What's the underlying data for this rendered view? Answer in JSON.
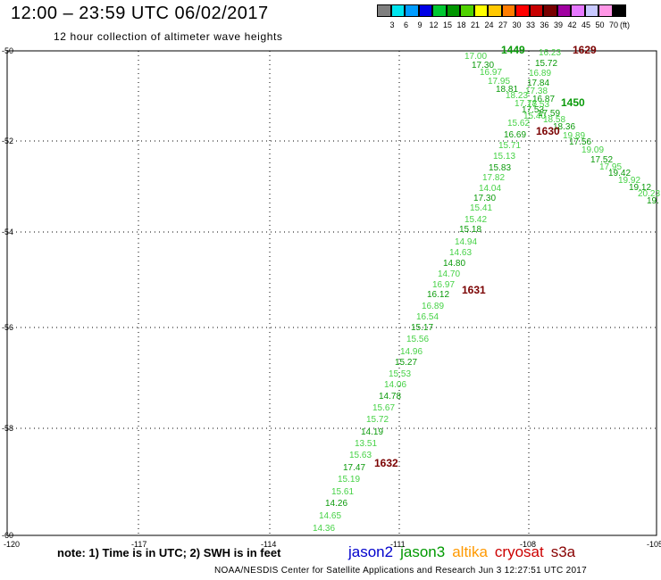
{
  "header": {
    "title": "12:00 – 23:59 UTC 06/02/2017",
    "subtitle": "12 hour collection of altimeter wave heights"
  },
  "color_scale": {
    "unit": "(ft)",
    "bins": [
      {
        "label": "3",
        "color": "#7f7f7f"
      },
      {
        "label": "6",
        "color": "#00e5ee"
      },
      {
        "label": "9",
        "color": "#009cff"
      },
      {
        "label": "12",
        "color": "#0000e6"
      },
      {
        "label": "15",
        "color": "#00c832"
      },
      {
        "label": "18",
        "color": "#009600"
      },
      {
        "label": "21",
        "color": "#50d200"
      },
      {
        "label": "24",
        "color": "#ffff00"
      },
      {
        "label": "27",
        "color": "#ffc800"
      },
      {
        "label": "30",
        "color": "#ff7d00"
      },
      {
        "label": "33",
        "color": "#ff0000"
      },
      {
        "label": "36",
        "color": "#c80000"
      },
      {
        "label": "39",
        "color": "#780000"
      },
      {
        "label": "42",
        "color": "#a000a0"
      },
      {
        "label": "45",
        "color": "#e678ff"
      },
      {
        "label": "50",
        "color": "#c8c8ff"
      },
      {
        "label": "70",
        "color": "#ff96e6"
      },
      {
        "label": "",
        "color": "#000000"
      }
    ]
  },
  "axes": {
    "lat_labels": [
      "-50",
      "-52",
      "-54",
      "-56",
      "-58",
      "-60"
    ],
    "lon_labels": [
      "-120",
      "-117",
      "-114",
      "-111",
      "-108",
      "-105"
    ]
  },
  "swh_colors": {
    "light": "#46d246",
    "dark": "#0a9a0a",
    "time": "#7a0000"
  },
  "track1_values": [
    "17.00",
    "17.30",
    "16.97",
    "17.95",
    "18.81",
    "18.23",
    "17.78",
    "17.53",
    "15.40",
    "15.62",
    "16.69",
    "15.71",
    "15.13",
    "15.83",
    "17.82",
    "14.04",
    "17.30",
    "15.41",
    "15.42",
    "15.18",
    "14.94",
    "14.63",
    "14.80",
    "14.70",
    "16.97",
    "16.12",
    "16.89",
    "16.54",
    "15.17",
    "15.56",
    "14.96",
    "15.27",
    "15.53",
    "14.06",
    "14.78",
    "15.67",
    "15.72",
    "14.19",
    "13.51",
    "15.63",
    "17.47",
    "15.19",
    "15.61",
    "14.26",
    "14.65",
    "14.36"
  ],
  "track2_values": [
    "16.23",
    "15.72",
    "16.89",
    "17.84",
    "17.38",
    "16.87",
    "17.53",
    "17.59",
    "18.58",
    "18.36",
    "19.89",
    "17.56",
    "19.09",
    "17.52",
    "17.95",
    "19.42",
    "19.92",
    "19.12",
    "20.23",
    "19."
  ],
  "time_labels": [
    "1449",
    "1629",
    "1450",
    "1630",
    "1631",
    "1632"
  ],
  "footer": {
    "note": "note:  1) Time is in UTC;  2) SWH is in feet",
    "satellites": [
      {
        "name": "jason2",
        "color": "#0000cc"
      },
      {
        "name": "jason3",
        "color": "#009900"
      },
      {
        "name": "altika",
        "color": "#ff9900"
      },
      {
        "name": "cryosat",
        "color": "#cc0000"
      },
      {
        "name": "s3a",
        "color": "#880000"
      }
    ],
    "credit": "NOAA/NESDIS Center for Satellite Applications and Research    Jun  3 12:27:51 UTC 2017"
  }
}
